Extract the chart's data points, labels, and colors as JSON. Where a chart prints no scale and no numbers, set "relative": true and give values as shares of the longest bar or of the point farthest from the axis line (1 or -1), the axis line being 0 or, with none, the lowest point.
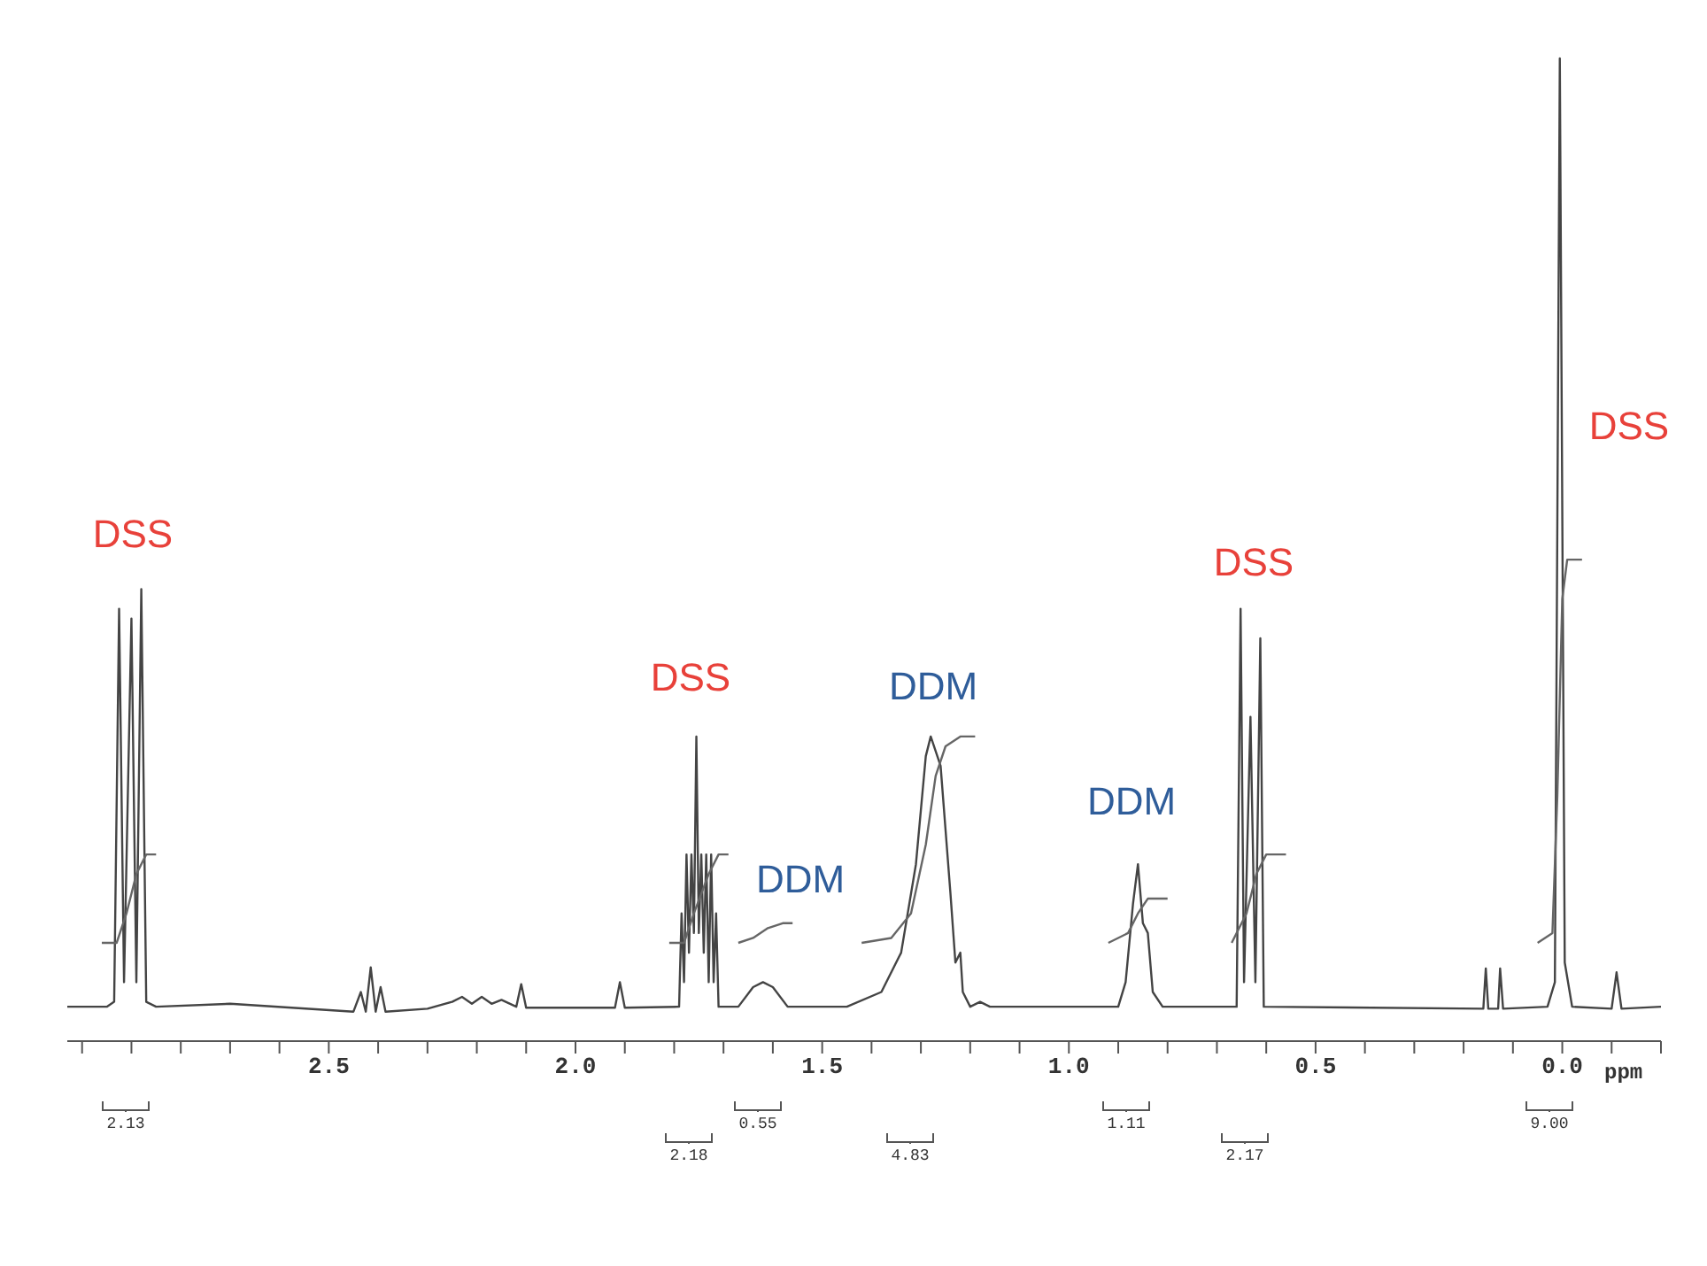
{
  "chart_data": {
    "type": "line",
    "relative": true,
    "xlabel": "ppm",
    "tick_labels": "x",
    "xlim": [
      3.03,
      -0.2
    ],
    "xticks": [
      {
        "value": 3.0,
        "label": null
      },
      {
        "value": 2.9,
        "label": null
      },
      {
        "value": 2.8,
        "label": null
      },
      {
        "value": 2.7,
        "label": null
      },
      {
        "value": 2.6,
        "label": null
      },
      2.5,
      {
        "value": 2.4,
        "label": null
      },
      {
        "value": 2.3,
        "label": null
      },
      {
        "value": 2.2,
        "label": null
      },
      {
        "value": 2.1,
        "label": null
      },
      {
        "value": 2.0,
        "label": "2.0"
      },
      {
        "value": 1.9,
        "label": null
      },
      {
        "value": 1.8,
        "label": null
      },
      {
        "value": 1.7,
        "label": null
      },
      {
        "value": 1.6,
        "label": null
      },
      1.5,
      {
        "value": 1.4,
        "label": null
      },
      {
        "value": 1.3,
        "label": null
      },
      {
        "value": 1.2,
        "label": null
      },
      {
        "value": 1.1,
        "label": null
      },
      {
        "value": 1.0,
        "label": "1.0"
      },
      {
        "value": 0.9,
        "label": null
      },
      {
        "value": 0.8,
        "label": null
      },
      {
        "value": 0.7,
        "label": null
      },
      {
        "value": 0.6,
        "label": null
      },
      0.5,
      {
        "value": 0.4,
        "label": null
      },
      {
        "value": 0.3,
        "label": null
      },
      {
        "value": 0.2,
        "label": null
      },
      {
        "value": 0.1,
        "label": null
      },
      {
        "value": 0.0,
        "label": "0.0"
      },
      {
        "value": -0.1,
        "label": null
      },
      {
        "value": -0.2,
        "label": null
      }
    ],
    "series": [
      {
        "color": "#444444",
        "x": [
          3.03,
          2.95,
          2.935,
          2.925,
          2.915,
          2.9,
          2.89,
          2.88,
          2.87,
          2.85,
          2.7,
          2.45,
          2.435,
          2.425,
          2.415,
          2.405,
          2.395,
          2.385,
          2.3,
          2.25,
          2.23,
          2.21,
          2.19,
          2.17,
          2.15,
          2.12,
          2.11,
          2.1,
          1.92,
          1.91,
          1.9,
          1.79,
          1.785,
          1.78,
          1.775,
          1.77,
          1.765,
          1.76,
          1.755,
          1.75,
          1.745,
          1.74,
          1.735,
          1.73,
          1.725,
          1.72,
          1.715,
          1.71,
          1.67,
          1.64,
          1.62,
          1.6,
          1.57,
          1.45,
          1.38,
          1.34,
          1.31,
          1.29,
          1.28,
          1.26,
          1.24,
          1.23,
          1.22,
          1.215,
          1.2,
          1.18,
          1.16,
          0.9,
          0.885,
          0.87,
          0.86,
          0.85,
          0.84,
          0.83,
          0.81,
          0.66,
          0.652,
          0.645,
          0.632,
          0.622,
          0.612,
          0.605,
          0.16,
          0.155,
          0.15,
          0.13,
          0.126,
          0.12,
          0.03,
          0.015,
          0.005,
          -0.005,
          -0.02,
          -0.1,
          -0.11,
          -0.12,
          -0.2
        ],
        "values": [
          0.035,
          0.035,
          0.04,
          0.44,
          0.06,
          0.43,
          0.06,
          0.46,
          0.04,
          0.035,
          0.038,
          0.03,
          0.05,
          0.03,
          0.075,
          0.03,
          0.055,
          0.03,
          0.033,
          0.04,
          0.045,
          0.038,
          0.045,
          0.038,
          0.042,
          0.035,
          0.058,
          0.034,
          0.034,
          0.06,
          0.034,
          0.035,
          0.13,
          0.06,
          0.19,
          0.09,
          0.19,
          0.11,
          0.31,
          0.11,
          0.19,
          0.09,
          0.19,
          0.06,
          0.19,
          0.06,
          0.13,
          0.035,
          0.035,
          0.055,
          0.06,
          0.055,
          0.035,
          0.035,
          0.05,
          0.09,
          0.18,
          0.29,
          0.31,
          0.28,
          0.15,
          0.08,
          0.09,
          0.05,
          0.035,
          0.04,
          0.035,
          0.035,
          0.06,
          0.14,
          0.18,
          0.12,
          0.11,
          0.05,
          0.035,
          0.035,
          0.44,
          0.06,
          0.33,
          0.06,
          0.41,
          0.035,
          0.033,
          0.074,
          0.033,
          0.033,
          0.074,
          0.033,
          0.035,
          0.06,
          1.0,
          0.08,
          0.035,
          0.033,
          0.07,
          0.033,
          0.035
        ]
      },
      {
        "color": "#666666",
        "x": [
          2.96,
          2.93,
          2.91,
          2.89,
          2.87,
          2.85
        ],
        "values": [
          0.1,
          0.1,
          0.13,
          0.17,
          0.19,
          0.19
        ]
      },
      {
        "color": "#666666",
        "x": [
          1.81,
          1.78,
          1.76,
          1.73,
          1.71,
          1.69
        ],
        "values": [
          0.1,
          0.1,
          0.13,
          0.17,
          0.19,
          0.19
        ]
      },
      {
        "color": "#666666",
        "x": [
          1.67,
          1.64,
          1.61,
          1.58,
          1.56
        ],
        "values": [
          0.1,
          0.105,
          0.115,
          0.12,
          0.12
        ]
      },
      {
        "color": "#666666",
        "x": [
          1.42,
          1.36,
          1.32,
          1.29,
          1.27,
          1.25,
          1.22,
          1.19
        ],
        "values": [
          0.1,
          0.105,
          0.13,
          0.2,
          0.27,
          0.3,
          0.31,
          0.31
        ]
      },
      {
        "color": "#666666",
        "x": [
          0.92,
          0.88,
          0.86,
          0.84,
          0.8
        ],
        "values": [
          0.1,
          0.11,
          0.13,
          0.145,
          0.145
        ]
      },
      {
        "color": "#666666",
        "x": [
          0.67,
          0.64,
          0.62,
          0.6,
          0.56
        ],
        "values": [
          0.1,
          0.13,
          0.17,
          0.19,
          0.19
        ]
      },
      {
        "color": "#666666",
        "x": [
          0.05,
          0.02,
          0.01,
          0.0,
          -0.01,
          -0.04
        ],
        "values": [
          0.1,
          0.11,
          0.25,
          0.45,
          0.49,
          0.49
        ]
      }
    ],
    "annotations": [
      "DSS",
      "DSS",
      "DDM",
      "DDM",
      "DDM",
      "DSS",
      "DSS",
      "2.13",
      "2.18",
      "0.55",
      "4.83",
      "1.11",
      "2.17",
      "9.00"
    ]
  }
}
